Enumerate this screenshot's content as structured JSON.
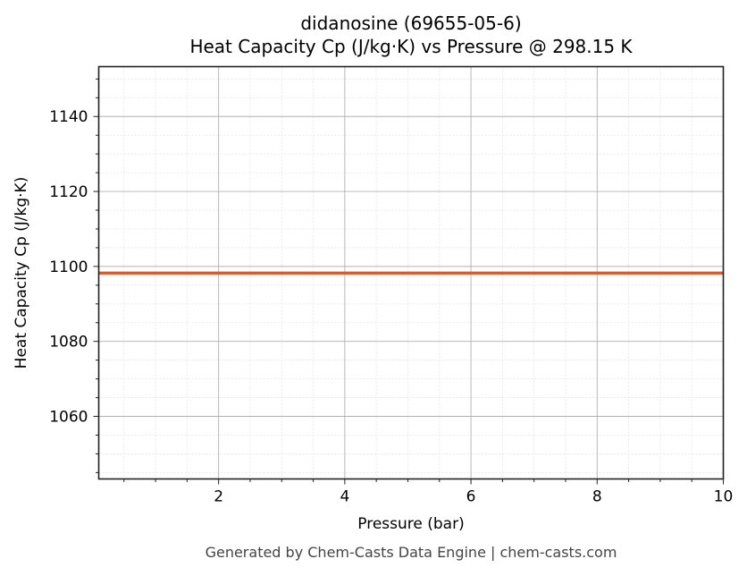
{
  "chart_data": {
    "type": "line",
    "title": "didanosine (69655-05-6)",
    "subtitle": "Heat Capacity Cp (J/kg·K) vs Pressure @ 298.15 K",
    "xlabel": "Pressure (bar)",
    "ylabel": "Heat Capacity Cp (J/kg·K)",
    "xlim": [
      0.1,
      10
    ],
    "ylim": [
      1043.3,
      1153.3
    ],
    "x_ticks": [
      2,
      4,
      6,
      8,
      10
    ],
    "y_ticks": [
      1060,
      1080,
      1100,
      1120,
      1140
    ],
    "grid": true,
    "legend": null,
    "series": [
      {
        "name": "Cp",
        "color": "#d95a2b",
        "x": [
          0.1,
          1,
          2,
          3,
          4,
          5,
          6,
          7,
          8,
          9,
          10
        ],
        "values": [
          1098.2,
          1098.2,
          1098.2,
          1098.2,
          1098.2,
          1098.2,
          1098.2,
          1098.2,
          1098.2,
          1098.2,
          1098.2
        ]
      }
    ]
  },
  "labels": {
    "title": "didanosine (69655-05-6)",
    "subtitle": "Heat Capacity Cp (J/kg·K) vs Pressure @ 298.15 K",
    "xlabel": "Pressure (bar)",
    "ylabel": "Heat Capacity Cp (J/kg·K)",
    "footer": "Generated by Chem-Casts Data Engine | chem-casts.com"
  }
}
